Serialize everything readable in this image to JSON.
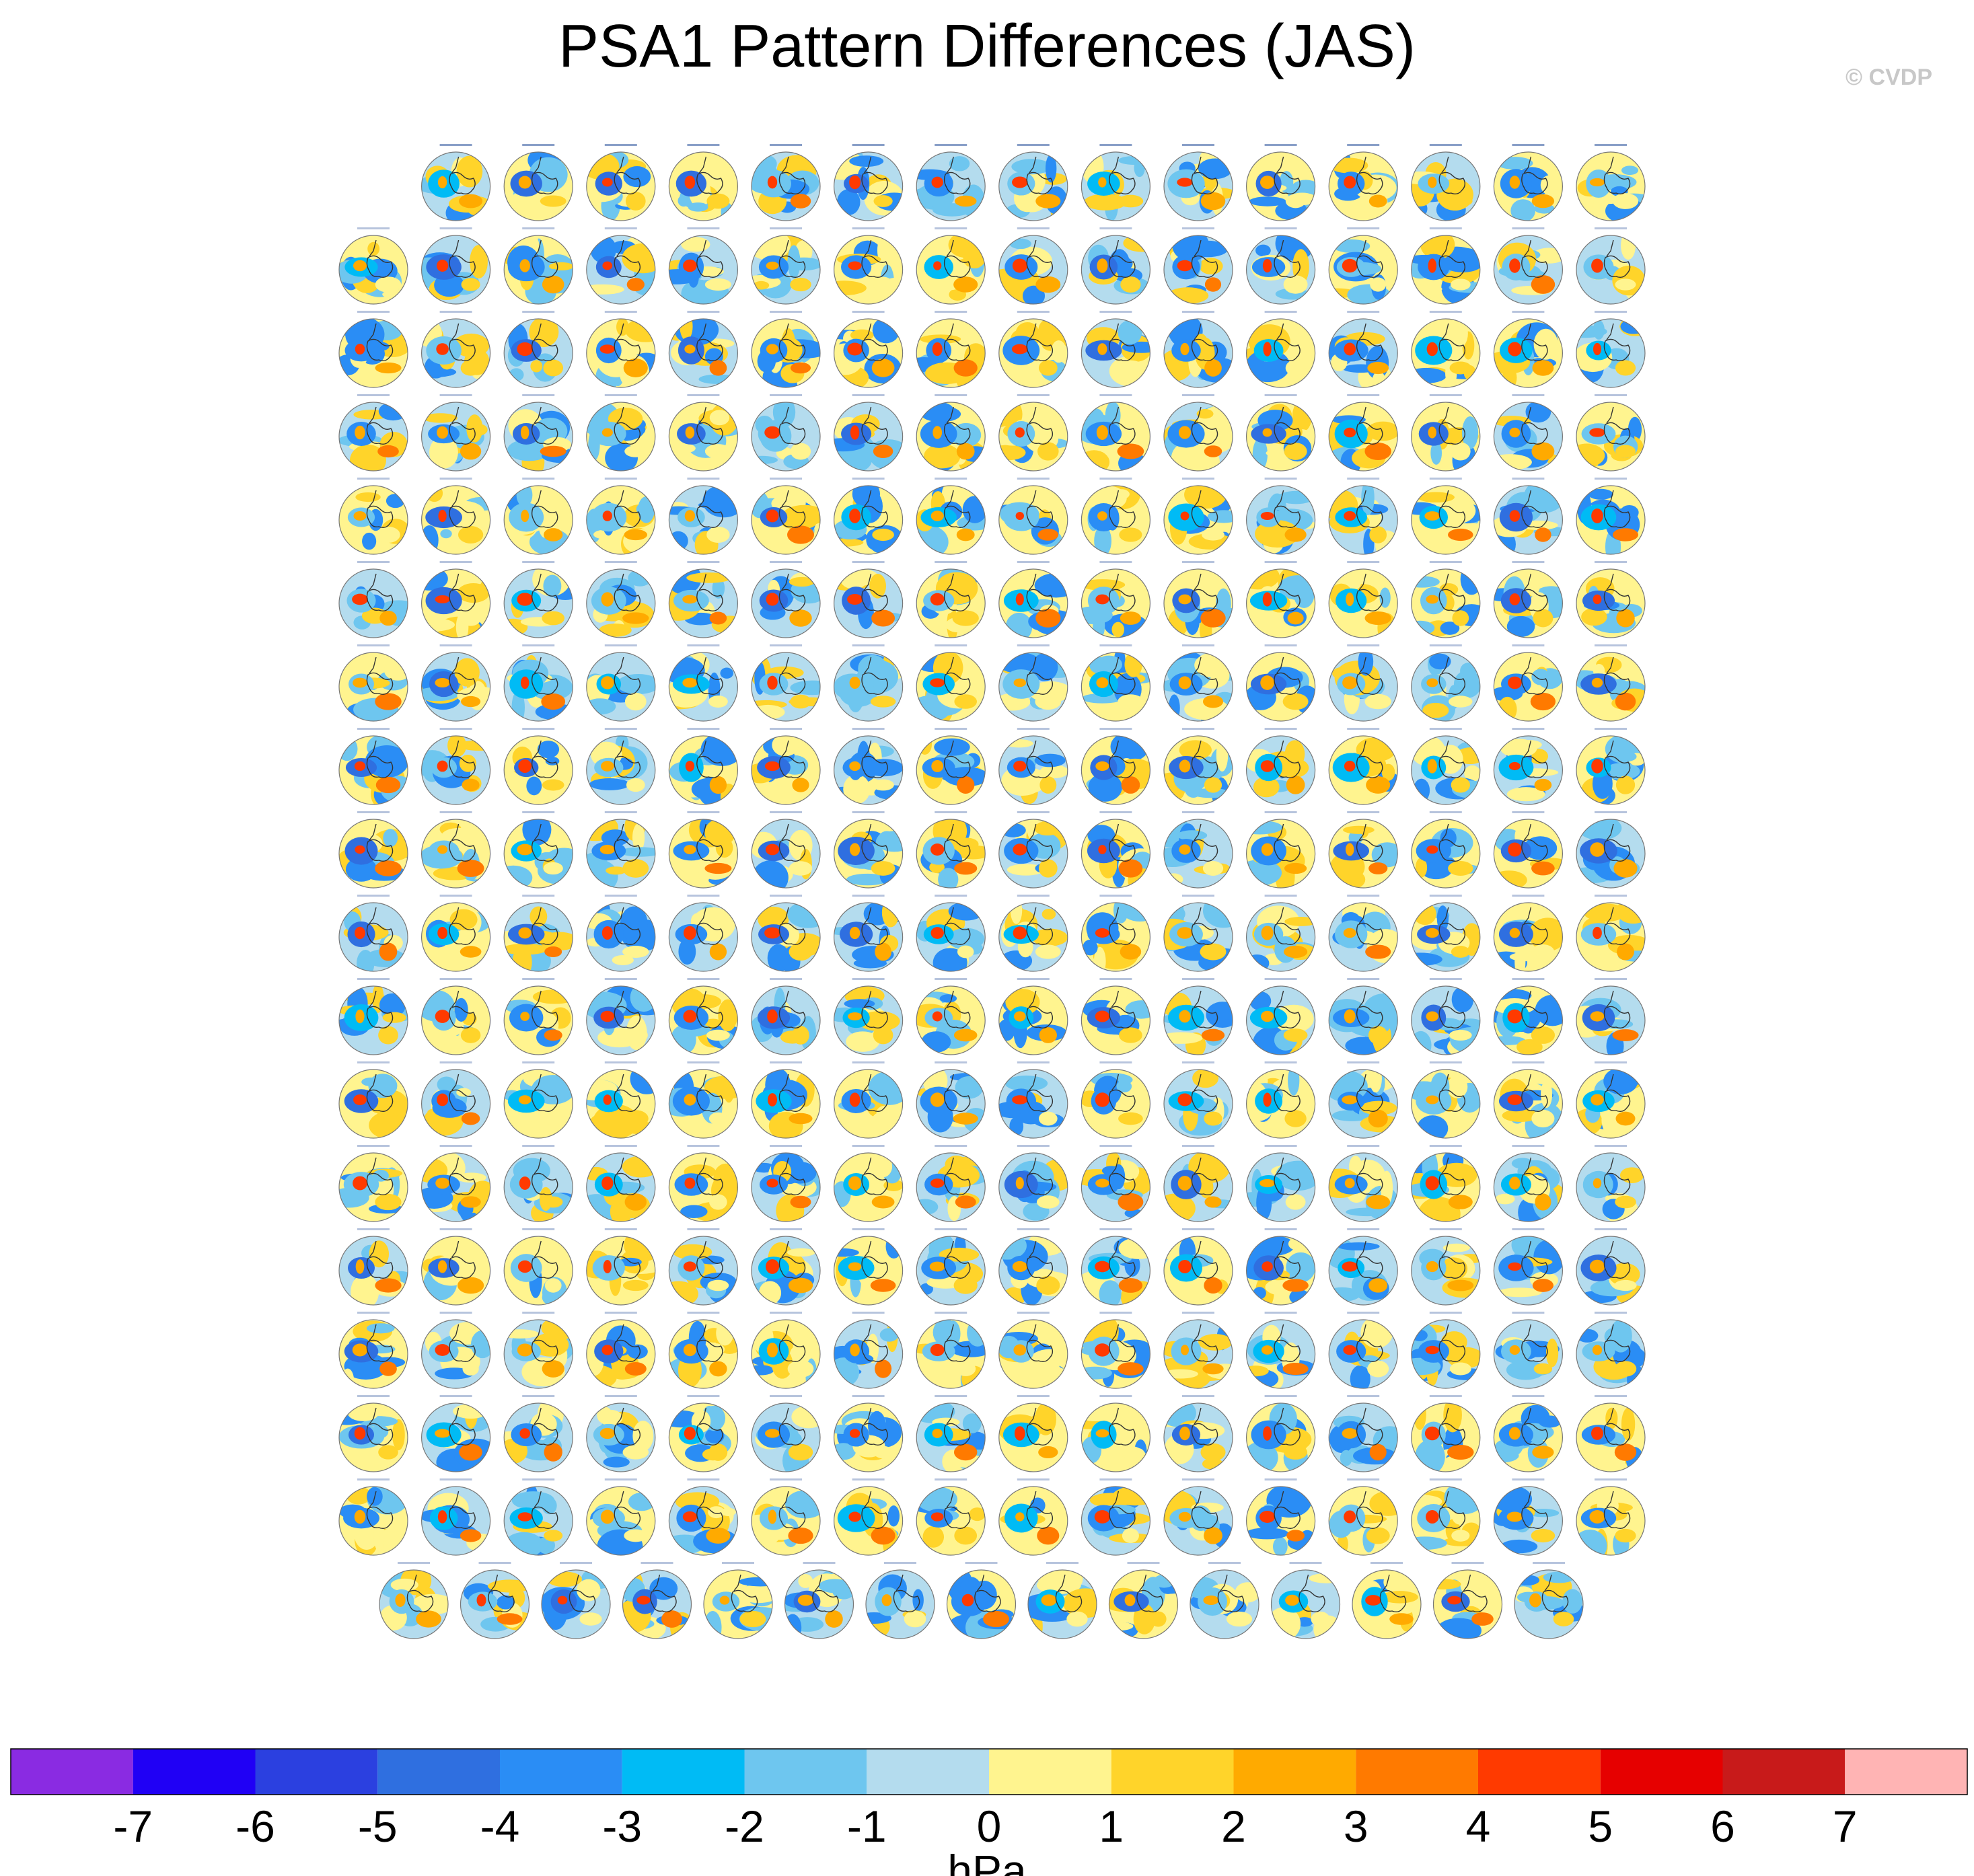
{
  "title": "PSA1 Pattern Differences (JAS)",
  "watermark": "© CVDP",
  "chart_data": {
    "type": "panel-grid",
    "description_of_layout": "small-multiple polar maps",
    "rows": [
      15,
      16,
      16,
      16,
      16,
      16,
      16,
      16,
      16,
      16,
      16,
      16,
      16,
      16,
      16,
      16,
      16,
      15
    ],
    "colorbar": {
      "label": "hPa",
      "tick_labels": [
        "-7",
        "-6",
        "-5",
        "-4",
        "-3",
        "-2",
        "-1",
        "0",
        "1",
        "2",
        "3",
        "4",
        "5",
        "6",
        "7"
      ],
      "colors": [
        "#8a2be2",
        "#2000f5",
        "#2b40e0",
        "#2f6fe0",
        "#2a8df5",
        "#00bbf5",
        "#6ec6ef",
        "#b4dcee",
        "#fff48f",
        "#ffd42a",
        "#ffaa00",
        "#ff7a00",
        "#ff3a00",
        "#e60000",
        "#c81a1a",
        "#ffb4b4"
      ]
    }
  }
}
